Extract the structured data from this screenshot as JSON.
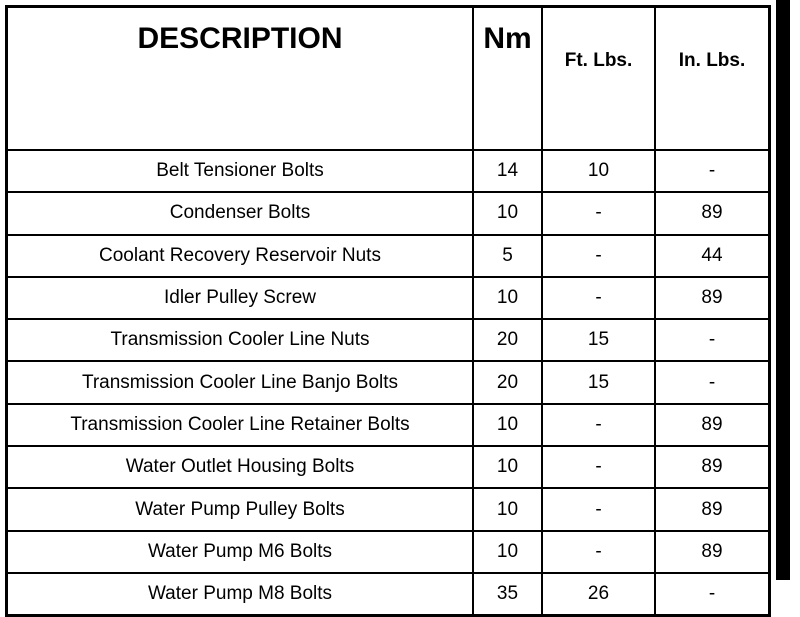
{
  "headers": {
    "description": "DESCRIPTION",
    "nm": "Nm",
    "ft_lbs": "Ft. Lbs.",
    "in_lbs": "In. Lbs."
  },
  "rows": [
    {
      "description": "Belt Tensioner Bolts",
      "nm": "14",
      "ft_lbs": "10",
      "in_lbs": "-"
    },
    {
      "description": "Condenser Bolts",
      "nm": "10",
      "ft_lbs": "-",
      "in_lbs": "89"
    },
    {
      "description": "Coolant Recovery Reservoir Nuts",
      "nm": "5",
      "ft_lbs": "-",
      "in_lbs": "44"
    },
    {
      "description": "Idler Pulley Screw",
      "nm": "10",
      "ft_lbs": "-",
      "in_lbs": "89"
    },
    {
      "description": "Transmission Cooler Line Nuts",
      "nm": "20",
      "ft_lbs": "15",
      "in_lbs": "-"
    },
    {
      "description": "Transmission Cooler Line Banjo Bolts",
      "nm": "20",
      "ft_lbs": "15",
      "in_lbs": "-"
    },
    {
      "description": "Transmission Cooler Line Retainer Bolts",
      "nm": "10",
      "ft_lbs": "-",
      "in_lbs": "89"
    },
    {
      "description": "Water Outlet Housing Bolts",
      "nm": "10",
      "ft_lbs": "-",
      "in_lbs": "89"
    },
    {
      "description": "Water Pump Pulley Bolts",
      "nm": "10",
      "ft_lbs": "-",
      "in_lbs": "89"
    },
    {
      "description": "Water Pump M6 Bolts",
      "nm": "10",
      "ft_lbs": "-",
      "in_lbs": "89"
    },
    {
      "description": "Water Pump M8 Bolts",
      "nm": "35",
      "ft_lbs": "26",
      "in_lbs": "-"
    }
  ]
}
